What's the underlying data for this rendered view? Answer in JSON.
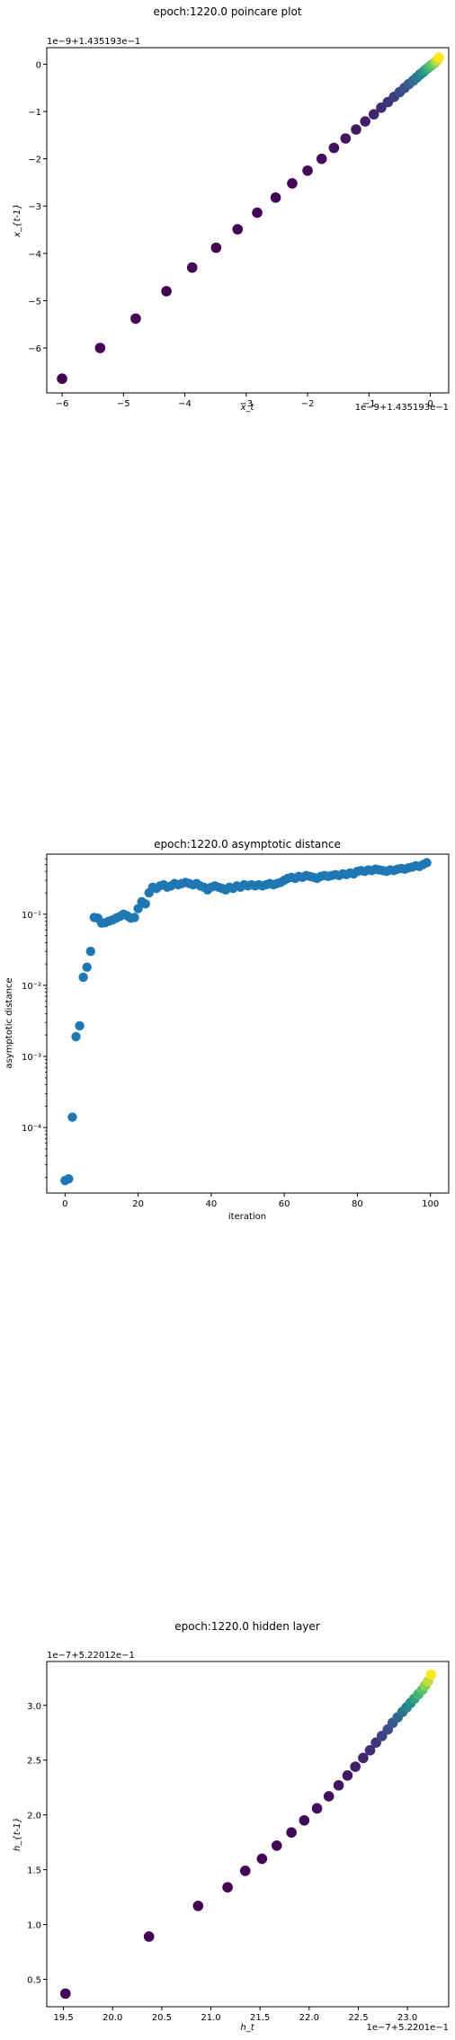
{
  "chart_data": [
    {
      "type": "scatter",
      "title": "epoch:1220.0 poincare plot",
      "xlabel": "x_t",
      "ylabel": "x_{t-1}",
      "x_offset_label": "1e−9+1.435193e−1",
      "y_offset_label": "1e−9+1.435193e−1",
      "xlim": [
        -6.25,
        0.3
      ],
      "ylim": [
        -6.95,
        0.35
      ],
      "xticks": [
        -6,
        -5,
        -4,
        -3,
        -2,
        -1,
        0
      ],
      "yticks": [
        -6,
        -5,
        -4,
        -3,
        -2,
        -1,
        0
      ],
      "xtick_labels": [
        "−6",
        "−5",
        "−4",
        "−3",
        "−2",
        "−1",
        "0"
      ],
      "ytick_labels": [
        "−6",
        "−5",
        "−4",
        "−3",
        "−2",
        "−1",
        "0"
      ],
      "colormap": [
        "#440154",
        "#3b528b",
        "#21918c",
        "#5ec962",
        "#fde725"
      ],
      "x": [
        -6.0,
        -5.38,
        -4.8,
        -4.3,
        -3.88,
        -3.49,
        -3.14,
        -2.82,
        -2.52,
        -2.25,
        -2.0,
        -1.77,
        -1.57,
        -1.38,
        -1.21,
        -1.06,
        -0.92,
        -0.8,
        -0.69,
        -0.59,
        -0.5,
        -0.42,
        -0.35,
        -0.28,
        -0.22,
        -0.17,
        -0.12,
        -0.08,
        -0.04,
        0.0,
        0.04,
        0.08,
        0.11,
        0.14
      ],
      "y": [
        -6.65,
        -6.0,
        -5.38,
        -4.8,
        -4.3,
        -3.88,
        -3.49,
        -3.14,
        -2.82,
        -2.52,
        -2.25,
        -2.0,
        -1.77,
        -1.57,
        -1.38,
        -1.21,
        -1.06,
        -0.92,
        -0.8,
        -0.69,
        -0.59,
        -0.5,
        -0.42,
        -0.35,
        -0.28,
        -0.22,
        -0.17,
        -0.12,
        -0.08,
        -0.04,
        0.0,
        0.04,
        0.08,
        0.14
      ]
    },
    {
      "type": "scatter",
      "title": "epoch:1220.0 asymptotic distance",
      "xlabel": "iteration",
      "ylabel": "asymptotic distance",
      "yscale": "log",
      "xlim": [
        -5,
        105
      ],
      "ylim": [
        1.2e-05,
        0.7
      ],
      "xticks": [
        0,
        20,
        40,
        60,
        80,
        100
      ],
      "xtick_labels": [
        "0",
        "20",
        "40",
        "60",
        "80",
        "100"
      ],
      "ytick_labels": [
        "10⁻⁴",
        "10⁻³",
        "10⁻²",
        "10⁻¹"
      ],
      "color": "#1f77b4",
      "x": [
        0,
        1,
        2,
        3,
        4,
        5,
        6,
        7,
        8,
        9,
        10,
        11,
        12,
        13,
        14,
        15,
        16,
        17,
        18,
        19,
        20,
        21,
        22,
        23,
        24,
        25,
        26,
        27,
        28,
        29,
        30,
        31,
        32,
        33,
        34,
        35,
        36,
        37,
        38,
        39,
        40,
        41,
        42,
        43,
        44,
        45,
        46,
        47,
        48,
        49,
        50,
        51,
        52,
        53,
        54,
        55,
        56,
        57,
        58,
        59,
        60,
        61,
        62,
        63,
        64,
        65,
        66,
        67,
        68,
        69,
        70,
        71,
        72,
        73,
        74,
        75,
        76,
        77,
        78,
        79,
        80,
        81,
        82,
        83,
        84,
        85,
        86,
        87,
        88,
        89,
        90,
        91,
        92,
        93,
        94,
        95,
        96,
        97,
        98,
        99
      ],
      "y": [
        1.8e-05,
        1.9e-05,
        0.00014,
        0.0019,
        0.0027,
        0.013,
        0.018,
        0.03,
        0.09,
        0.088,
        0.075,
        0.076,
        0.08,
        0.083,
        0.088,
        0.093,
        0.1,
        0.095,
        0.088,
        0.09,
        0.12,
        0.15,
        0.14,
        0.2,
        0.24,
        0.23,
        0.25,
        0.26,
        0.24,
        0.25,
        0.27,
        0.26,
        0.27,
        0.28,
        0.27,
        0.26,
        0.27,
        0.25,
        0.24,
        0.22,
        0.24,
        0.25,
        0.24,
        0.23,
        0.22,
        0.24,
        0.23,
        0.25,
        0.24,
        0.26,
        0.25,
        0.26,
        0.25,
        0.26,
        0.25,
        0.26,
        0.27,
        0.26,
        0.27,
        0.28,
        0.3,
        0.32,
        0.33,
        0.32,
        0.34,
        0.33,
        0.35,
        0.34,
        0.33,
        0.32,
        0.34,
        0.35,
        0.34,
        0.35,
        0.36,
        0.35,
        0.37,
        0.36,
        0.38,
        0.37,
        0.4,
        0.41,
        0.4,
        0.42,
        0.41,
        0.43,
        0.42,
        0.41,
        0.4,
        0.42,
        0.41,
        0.43,
        0.44,
        0.43,
        0.45,
        0.46,
        0.48,
        0.47,
        0.5,
        0.53
      ]
    },
    {
      "type": "scatter",
      "title": "epoch:1220.0 hidden layer",
      "xlabel": "h_t",
      "ylabel": "h_{t-1}",
      "x_offset_label": "1e−7+5.2201e−1",
      "y_offset_label": "1e−7+5.22012e−1",
      "xlim": [
        19.33,
        23.42
      ],
      "ylim": [
        0.25,
        3.4
      ],
      "xticks": [
        19.5,
        20.0,
        20.5,
        21.0,
        21.5,
        22.0,
        22.5,
        23.0
      ],
      "yticks": [
        0.5,
        1.0,
        1.5,
        2.0,
        2.5,
        3.0
      ],
      "xtick_labels": [
        "19.5",
        "20.0",
        "20.5",
        "21.0",
        "21.5",
        "22.0",
        "22.5",
        "23.0"
      ],
      "ytick_labels": [
        "0.5",
        "1.0",
        "1.5",
        "2.0",
        "2.5",
        "3.0"
      ],
      "colormap": [
        "#440154",
        "#3b528b",
        "#21918c",
        "#5ec962",
        "#fde725"
      ],
      "x": [
        19.52,
        20.37,
        20.87,
        21.17,
        21.35,
        21.52,
        21.67,
        21.82,
        21.95,
        22.08,
        22.2,
        22.3,
        22.39,
        22.47,
        22.55,
        22.62,
        22.68,
        22.74,
        22.8,
        22.85,
        22.9,
        22.95,
        22.99,
        23.03,
        23.07,
        23.11,
        23.15,
        23.18,
        23.21,
        23.24
      ],
      "y": [
        0.37,
        0.89,
        1.17,
        1.34,
        1.49,
        1.6,
        1.72,
        1.84,
        1.95,
        2.06,
        2.17,
        2.27,
        2.36,
        2.44,
        2.52,
        2.59,
        2.66,
        2.72,
        2.78,
        2.84,
        2.89,
        2.94,
        2.98,
        3.02,
        3.06,
        3.1,
        3.14,
        3.18,
        3.22,
        3.28
      ]
    }
  ]
}
